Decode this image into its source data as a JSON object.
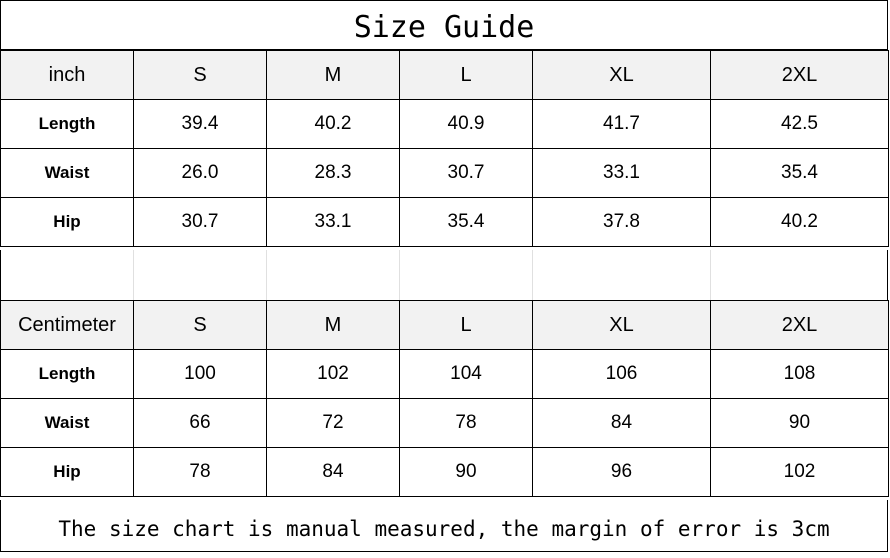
{
  "title": "Size Guide",
  "inch_table": {
    "unit": "inch",
    "sizes": [
      "S",
      "M",
      "L",
      "XL",
      "2XL"
    ],
    "rows": [
      {
        "label": "Length",
        "values": [
          "39.4",
          "40.2",
          "40.9",
          "41.7",
          "42.5"
        ]
      },
      {
        "label": "Waist",
        "values": [
          "26.0",
          "28.3",
          "30.7",
          "33.1",
          "35.4"
        ]
      },
      {
        "label": "Hip",
        "values": [
          "30.7",
          "33.1",
          "35.4",
          "37.8",
          "40.2"
        ]
      }
    ]
  },
  "cm_table": {
    "unit": "Centimeter",
    "sizes": [
      "S",
      "M",
      "L",
      "XL",
      "2XL"
    ],
    "rows": [
      {
        "label": "Length",
        "values": [
          "100",
          "102",
          "104",
          "106",
          "108"
        ]
      },
      {
        "label": "Waist",
        "values": [
          "66",
          "72",
          "78",
          "84",
          "90"
        ]
      },
      {
        "label": "Hip",
        "values": [
          "78",
          "84",
          "90",
          "96",
          "102"
        ]
      }
    ]
  },
  "footer": "The size chart is manual measured, the margin of error is 3cm",
  "colors": {
    "header_bg": "#f2f2f2",
    "border": "#000000"
  }
}
